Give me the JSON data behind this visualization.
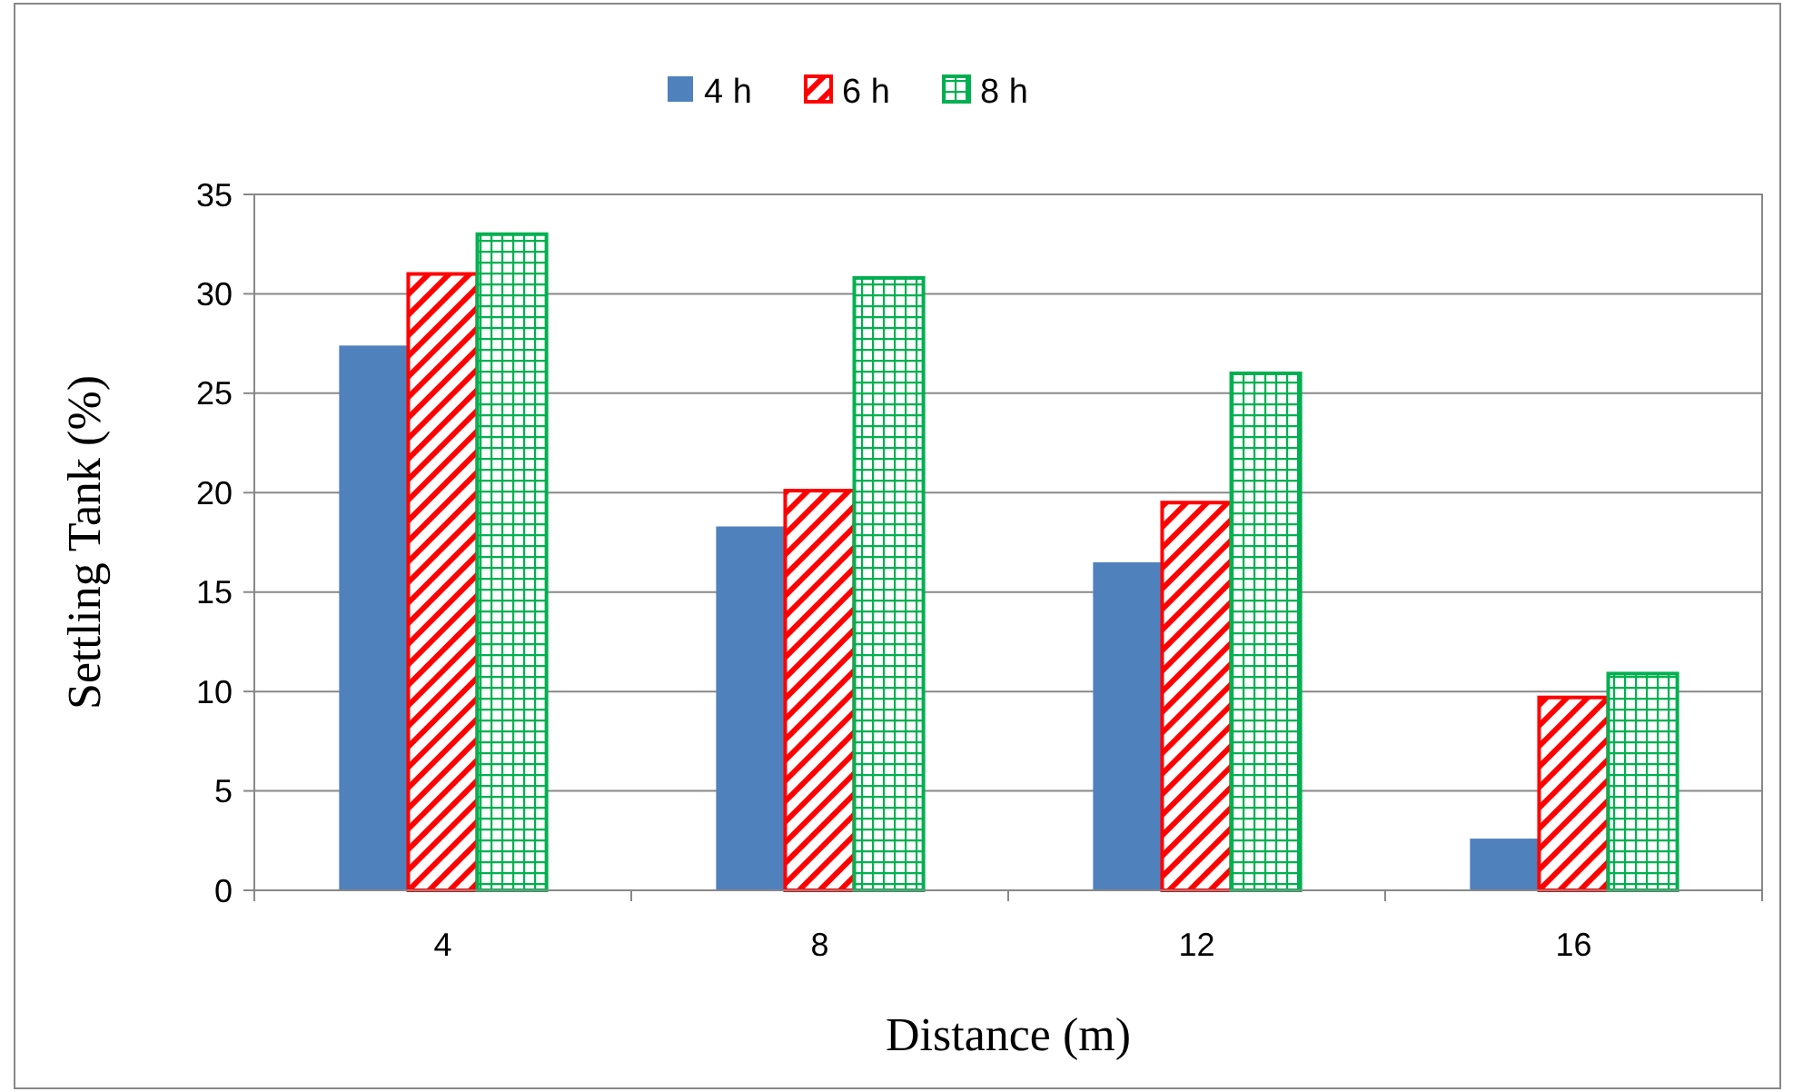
{
  "chart_data": {
    "type": "bar",
    "xlabel": "Distance (m)",
    "ylabel": "Settling Tank (%)",
    "categories": [
      "4",
      "8",
      "12",
      "16"
    ],
    "series": [
      {
        "name": "4 h",
        "color": "#4f81bd",
        "values": [
          27.4,
          18.3,
          16.5,
          2.6
        ]
      },
      {
        "name": "6 h",
        "color": "#ff0000",
        "values": [
          31,
          20.1,
          19.5,
          9.7
        ]
      },
      {
        "name": "8 h",
        "color": "#00b050",
        "values": [
          33,
          30.8,
          26,
          10.9
        ]
      }
    ],
    "ylim": [
      0,
      35
    ],
    "yticks": [
      0,
      5,
      10,
      15,
      20,
      25,
      30,
      35
    ],
    "grid": "y",
    "legend": "top"
  }
}
